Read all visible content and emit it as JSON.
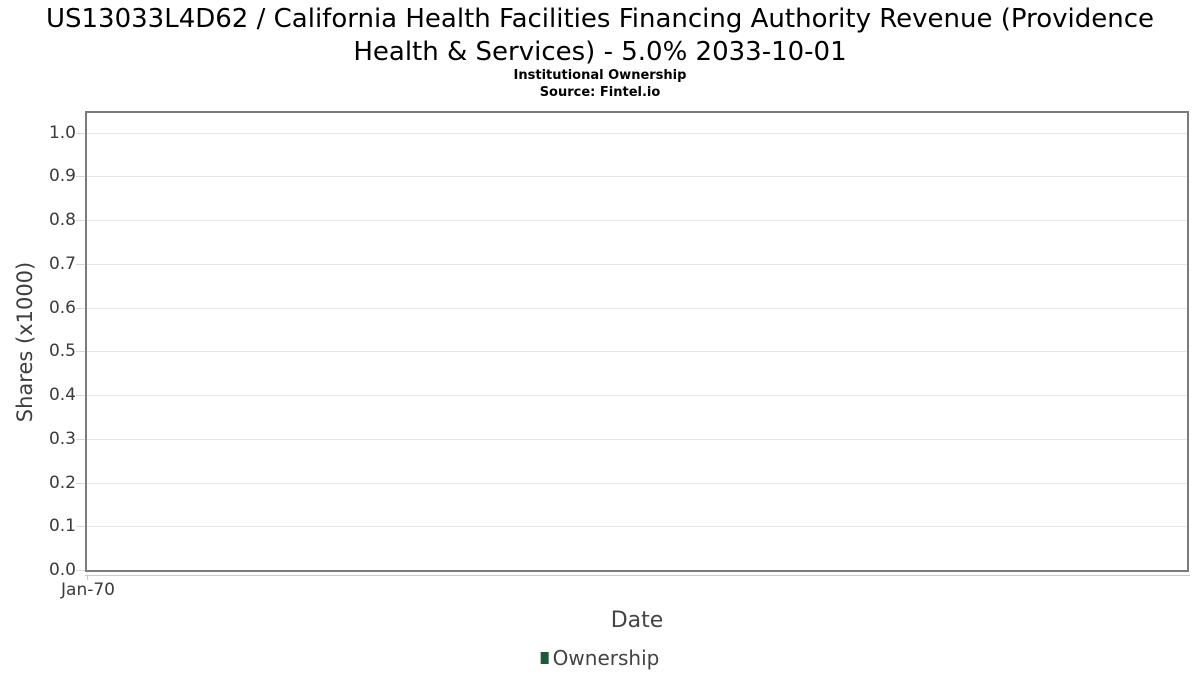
{
  "header": {
    "title": "US13033L4D62 / California Health Facilities Financing Authority Revenue (Providence Health & Services) - 5.0% 2033-10-01",
    "subtitle": "Institutional Ownership",
    "source": "Source: Fintel.io"
  },
  "chart_data": {
    "type": "area",
    "title": "US13033L4D62 / California Health Facilities Financing Authority Revenue (Providence Health & Services) - 5.0% 2033-10-01",
    "subtitle": "Institutional Ownership",
    "source": "Source: Fintel.io",
    "xlabel": "Date",
    "ylabel": "Shares (x1000)",
    "ylim": [
      0.0,
      1.045
    ],
    "yticks": [
      0.0,
      0.1,
      0.2,
      0.3,
      0.4,
      0.5,
      0.6,
      0.7,
      0.8,
      0.9,
      1.0
    ],
    "xticks": [
      "Jan-70"
    ],
    "grid": true,
    "legend_position": "bottom",
    "series": [
      {
        "name": "Ownership",
        "color": "#1e5a38",
        "x": [],
        "values": []
      }
    ]
  },
  "colors": {
    "plot_border": "#7b7b7b",
    "gridline": "#e7e7e7",
    "tick": "#d8d8d8",
    "axis_line": "#c9c9c9",
    "legend_marker": "#1e5a38",
    "background": "#ffffff"
  }
}
